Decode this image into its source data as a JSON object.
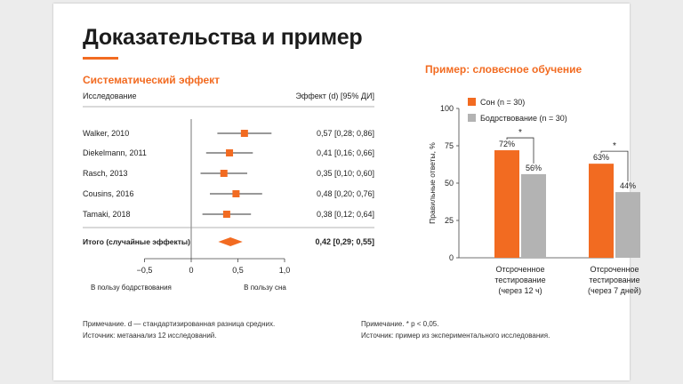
{
  "page": {
    "title": "Доказательства и пример"
  },
  "forest": {
    "heading": "Систематический эффект",
    "col_study": "Исследование",
    "col_effect": "Эффект (d) [95% ДИ]",
    "label_left": "В пользу бодрствования",
    "label_right": "В пользу сна",
    "note_line1": "Примечание. d — стандартизированная разница средних.",
    "note_line2": "Источник: метаанализ 12 исследований."
  },
  "example": {
    "heading": "Пример: словесное обучение",
    "note_line1": "Примечание. * p < 0,05.",
    "note_line2": "Источник: пример из экспериментального исследования."
  },
  "colors": {
    "accent": "#f26b21",
    "grey": "#b3b3b3",
    "text": "#222222"
  },
  "chart_data": [
    {
      "type": "forest",
      "studies": [
        {
          "name": "Walker, 2010",
          "d": 0.57,
          "lo": 0.28,
          "hi": 0.86,
          "label": "0,57 [0,28; 0,86]"
        },
        {
          "name": "Diekelmann, 2011",
          "d": 0.41,
          "lo": 0.16,
          "hi": 0.66,
          "label": "0,41 [0,16; 0,66]"
        },
        {
          "name": "Rasch, 2013",
          "d": 0.35,
          "lo": 0.1,
          "hi": 0.6,
          "label": "0,35 [0,10; 0,60]"
        },
        {
          "name": "Cousins, 2016",
          "d": 0.48,
          "lo": 0.2,
          "hi": 0.76,
          "label": "0,48 [0,20; 0,76]"
        },
        {
          "name": "Tamaki, 2018",
          "d": 0.38,
          "lo": 0.12,
          "hi": 0.64,
          "label": "0,38 [0,12; 0,64]"
        }
      ],
      "pooled": {
        "name": "Итого (случайные эффекты)",
        "d": 0.42,
        "lo": 0.29,
        "hi": 0.55,
        "label": "0,42 [0,29; 0,55]"
      },
      "xlim": [
        -0.5,
        1.0
      ],
      "xticks": [
        -0.5,
        0,
        0.5,
        1.0
      ],
      "xtick_labels": [
        "−0,5",
        "0",
        "0,5",
        "1,0"
      ]
    },
    {
      "type": "bar",
      "categories": [
        "Отсроченное тестирование (через 12 ч)",
        "Отсроченное тестирование (через 7 дней)"
      ],
      "category_lines": [
        [
          "Отсроченное",
          "тестирование",
          "(через 12 ч)"
        ],
        [
          "Отсроченное",
          "тестирование",
          "(через 7 дней)"
        ]
      ],
      "series": [
        {
          "name": "Сон (n = 30)",
          "values": [
            72,
            63
          ],
          "labels": [
            "72%",
            "63%"
          ],
          "color": "#f26b21"
        },
        {
          "name": "Бодрствование (n = 30)",
          "values": [
            56,
            44
          ],
          "labels": [
            "56%",
            "44%"
          ],
          "color": "#b3b3b3"
        }
      ],
      "ylabel": "Правильные ответы, %",
      "ylim": [
        0,
        100
      ],
      "yticks": [
        0,
        25,
        50,
        75,
        100
      ],
      "significance": [
        "*",
        "*"
      ],
      "legend": "top-left"
    }
  ]
}
